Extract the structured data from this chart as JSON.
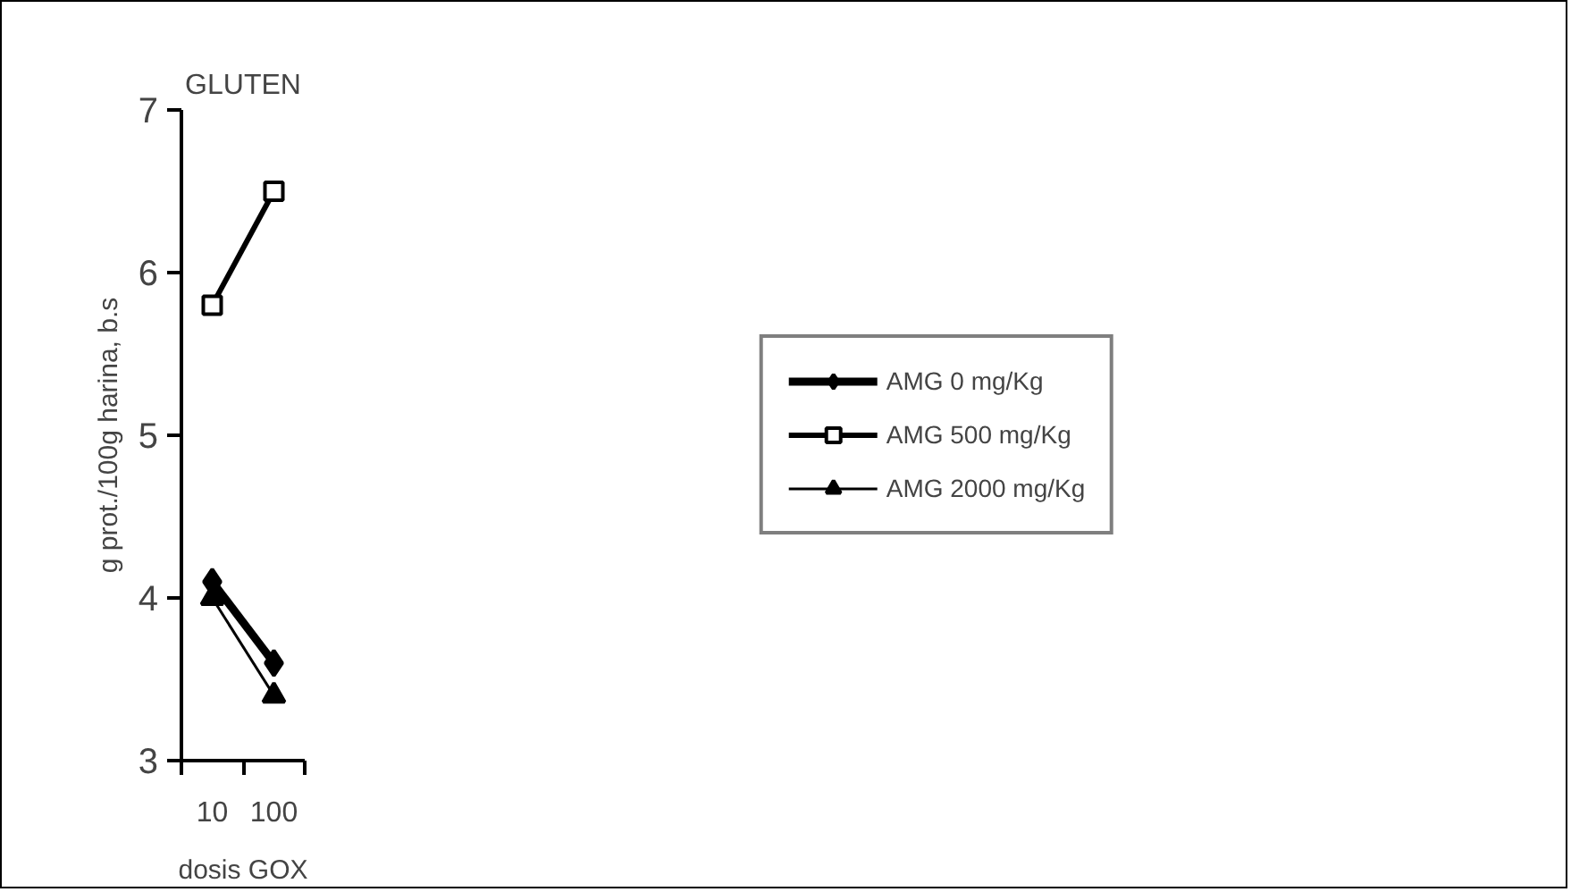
{
  "chart_data": {
    "type": "line",
    "title": "GLUTEN",
    "xlabel": "dosis GOX",
    "ylabel": "g prot./100g harina, b.s",
    "categories": [
      "10",
      "100"
    ],
    "ylim": [
      3,
      7
    ],
    "yticks": [
      3,
      4,
      5,
      6,
      7
    ],
    "grid": false,
    "legend": "right",
    "series": [
      {
        "name": "AMG 0 mg/Kg",
        "color": "#000000",
        "marker": "diamond",
        "values": [
          4.1,
          3.6
        ]
      },
      {
        "name": "AMG 500 mg/Kg",
        "color": "#000000",
        "marker": "square",
        "values": [
          5.8,
          6.5
        ]
      },
      {
        "name": "AMG 2000 mg/Kg",
        "color": "#000000",
        "marker": "triangle",
        "values": [
          4.0,
          3.4
        ]
      }
    ]
  }
}
